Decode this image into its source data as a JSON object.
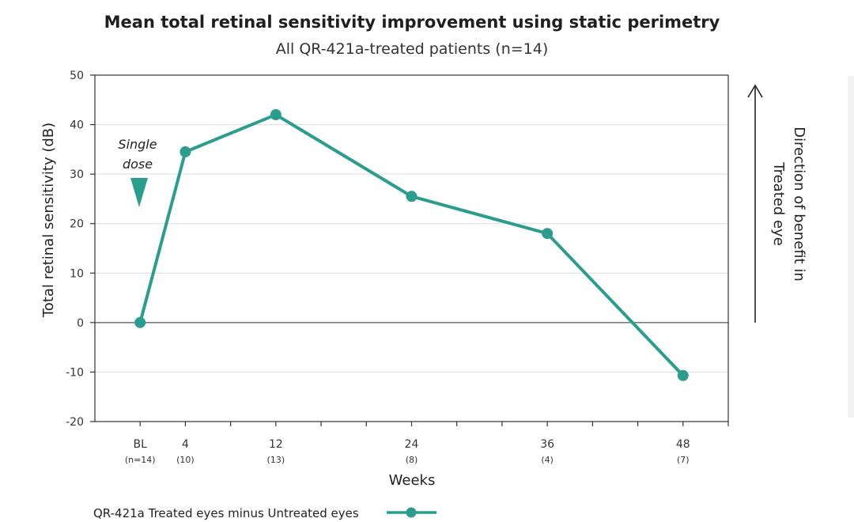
{
  "chart_data": {
    "type": "line",
    "title": "Mean total retinal sensitivity improvement using static perimetry",
    "subtitle": "All QR-421a-treated patients (n=14)",
    "ylabel": "Total retinal sensitivity (dB)",
    "xlabel": "Weeks",
    "ylim": [
      -20,
      50
    ],
    "yticks": [
      "50",
      "40",
      "30",
      "20",
      "10",
      "0",
      "-10",
      "-20"
    ],
    "yticks_values": [
      50,
      40,
      30,
      20,
      10,
      0,
      -10,
      -20
    ],
    "xlim": [
      -4,
      52
    ],
    "x_major_ticks": [
      0,
      4,
      12,
      24,
      36,
      48
    ],
    "x_minor_ticks": [
      8,
      16,
      20,
      28,
      32,
      40,
      44,
      52
    ],
    "categories": [
      "BL",
      "4",
      "12",
      "24",
      "36",
      "48"
    ],
    "n_labels": [
      "(n=14)",
      "(10)",
      "(13)",
      "(8)",
      "(4)",
      "(7)"
    ],
    "grid": "horizontal",
    "series": [
      {
        "name": "QR-421a Treated eyes minus Untreated eyes",
        "x": [
          0,
          4,
          12,
          24,
          36,
          48
        ],
        "values": [
          0,
          34.5,
          42,
          25.5,
          18,
          -10.7
        ],
        "color": "#2a9d8f"
      }
    ],
    "annotation": {
      "lines": [
        "Single",
        "dose"
      ],
      "x": 0,
      "marker": "down-triangle"
    },
    "side_label": [
      "Direction of benefit in",
      "Treated eye"
    ],
    "legend_placement": "bottom-left",
    "legend_label": "QR-421a Treated eyes minus Untreated eyes"
  }
}
